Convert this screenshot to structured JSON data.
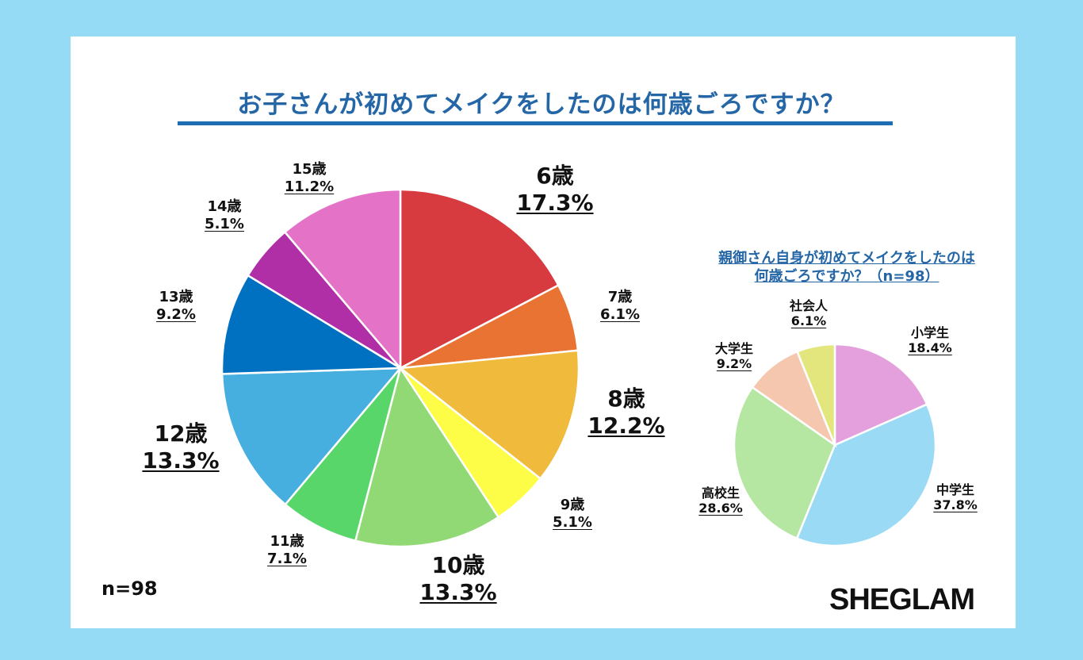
{
  "title": "お子さんが初めてメイクをしたのは何歳ごろですか？",
  "n_label": "n=98",
  "logo_text": "SHEGLAM",
  "chart_data": [
    {
      "type": "pie",
      "title": "お子さんが初めてメイクをしたのは何歳ごろですか？",
      "categories": [
        "6歳",
        "7歳",
        "8歳",
        "9歳",
        "10歳",
        "11歳",
        "12歳",
        "13歳",
        "14歳",
        "15歳"
      ],
      "values": [
        17.3,
        6.1,
        12.2,
        5.1,
        13.3,
        7.1,
        13.3,
        9.2,
        5.1,
        11.2
      ],
      "value_labels": [
        "17.3%",
        "6.1%",
        "12.2%",
        "5.1%",
        "13.3%",
        "7.1%",
        "13.3%",
        "9.2%",
        "5.1%",
        "11.2%"
      ],
      "colors": [
        "#d73b3f",
        "#e97333",
        "#f0bb3c",
        "#fdfd47",
        "#91d975",
        "#58d66a",
        "#47afe0",
        "#0070c0",
        "#b02ea6",
        "#e473c8"
      ],
      "n": "n=98"
    },
    {
      "type": "pie",
      "title_lines": [
        "親御さん自身が初めてメイクをしたのは",
        "何歳ごろですか？（n=98）"
      ],
      "categories": [
        "小学生",
        "中学生",
        "高校生",
        "大学生",
        "社会人"
      ],
      "values": [
        18.4,
        37.8,
        28.6,
        9.2,
        6.1
      ],
      "value_labels": [
        "18.4%",
        "37.8%",
        "28.6%",
        "9.2%",
        "6.1%"
      ],
      "colors": [
        "#e3a0dc",
        "#9adaf5",
        "#b5e6a2",
        "#f5c7ae",
        "#e3e67c"
      ]
    }
  ]
}
